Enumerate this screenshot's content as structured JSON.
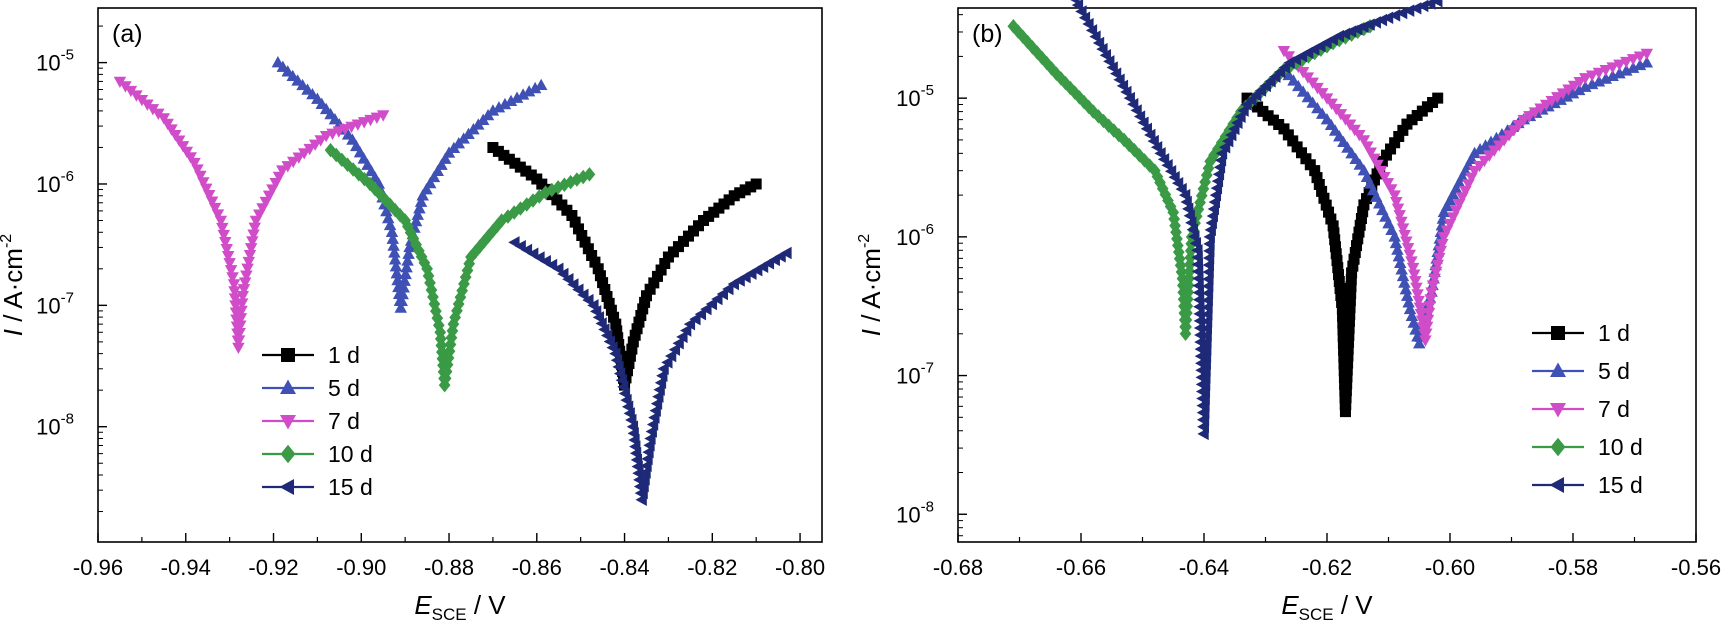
{
  "chart_data": [
    {
      "type": "line",
      "panel_label": "(a)",
      "xlabel": {
        "main": "E",
        "sub": "SCE",
        "rest": " / V"
      },
      "ylabel": {
        "italic": "I",
        "rest": " / A·cm",
        "sup": "-2"
      },
      "xlim": [
        -0.96,
        -0.795
      ],
      "ylim_log10": [
        -8.95,
        -4.55
      ],
      "x_ticks": [
        "-0.96",
        "-0.94",
        "-0.92",
        "-0.90",
        "-0.88",
        "-0.86",
        "-0.84",
        "-0.82",
        "-0.80"
      ],
      "y_ticks": [
        {
          "base": "10",
          "exp": "-8"
        },
        {
          "base": "10",
          "exp": "-7"
        },
        {
          "base": "10",
          "exp": "-6"
        },
        {
          "base": "10",
          "exp": "-5"
        }
      ],
      "legend_position": "lower-left",
      "series": [
        {
          "name": "1 d",
          "color": "#000000",
          "marker": "square",
          "points": [
            [
              -0.87,
              2e-06
            ],
            [
              -0.86,
              1.1e-06
            ],
            [
              -0.852,
              5.5e-07
            ],
            [
              -0.846,
              2e-07
            ],
            [
              -0.842,
              7e-08
            ],
            [
              -0.84,
              2.2e-08
            ],
            [
              -0.838,
              5e-08
            ],
            [
              -0.835,
              1.2e-07
            ],
            [
              -0.83,
              2.5e-07
            ],
            [
              -0.822,
              5e-07
            ],
            [
              -0.815,
              8e-07
            ],
            [
              -0.81,
              1e-06
            ]
          ]
        },
        {
          "name": "5 d",
          "color": "#3f51b5",
          "marker": "triangle-up",
          "points": [
            [
              -0.919,
              1e-05
            ],
            [
              -0.91,
              5e-06
            ],
            [
              -0.902,
              2.3e-06
            ],
            [
              -0.896,
              1e-06
            ],
            [
              -0.893,
              4e-07
            ],
            [
              -0.891,
              9.5e-08
            ],
            [
              -0.889,
              3e-07
            ],
            [
              -0.886,
              8e-07
            ],
            [
              -0.88,
              1.8e-06
            ],
            [
              -0.87,
              4e-06
            ],
            [
              -0.859,
              6.5e-06
            ]
          ]
        },
        {
          "name": "7 d",
          "color": "#d04cc8",
          "marker": "triangle-down",
          "points": [
            [
              -0.955,
              7e-06
            ],
            [
              -0.945,
              3.5e-06
            ],
            [
              -0.938,
              1.5e-06
            ],
            [
              -0.932,
              5e-07
            ],
            [
              -0.929,
              1.5e-07
            ],
            [
              -0.928,
              4.5e-08
            ],
            [
              -0.927,
              1.2e-07
            ],
            [
              -0.924,
              5e-07
            ],
            [
              -0.918,
              1.3e-06
            ],
            [
              -0.908,
              2.5e-06
            ],
            [
              -0.895,
              3.7e-06
            ]
          ]
        },
        {
          "name": "10 d",
          "color": "#3a9a45",
          "marker": "diamond",
          "points": [
            [
              -0.907,
              1.9e-06
            ],
            [
              -0.898,
              1e-06
            ],
            [
              -0.89,
              5e-07
            ],
            [
              -0.885,
              2e-07
            ],
            [
              -0.882,
              6e-08
            ],
            [
              -0.881,
              2.2e-08
            ],
            [
              -0.879,
              7e-08
            ],
            [
              -0.875,
              2.5e-07
            ],
            [
              -0.868,
              5e-07
            ],
            [
              -0.858,
              8.5e-07
            ],
            [
              -0.848,
              1.2e-06
            ]
          ]
        },
        {
          "name": "15 d",
          "color": "#1e2a78",
          "marker": "triangle-left",
          "points": [
            [
              -0.865,
              3.3e-07
            ],
            [
              -0.855,
              2e-07
            ],
            [
              -0.847,
              1e-07
            ],
            [
              -0.842,
              4e-08
            ],
            [
              -0.838,
              1e-08
            ],
            [
              -0.836,
              2.5e-09
            ],
            [
              -0.834,
              8e-09
            ],
            [
              -0.831,
              3e-08
            ],
            [
              -0.825,
              7e-08
            ],
            [
              -0.815,
              1.5e-07
            ],
            [
              -0.803,
              2.7e-07
            ]
          ]
        }
      ]
    },
    {
      "type": "line",
      "panel_label": "(b)",
      "xlabel": {
        "main": "E",
        "sub": "SCE",
        "rest": " / V"
      },
      "ylabel": {
        "italic": "I",
        "rest": " / A·cm",
        "sup": "-2"
      },
      "xlim": [
        -0.68,
        -0.56
      ],
      "ylim_log10": [
        -8.2,
        -4.35
      ],
      "x_ticks": [
        "-0.68",
        "-0.66",
        "-0.64",
        "-0.62",
        "-0.60",
        "-0.58",
        "-0.56"
      ],
      "y_ticks": [
        {
          "base": "10",
          "exp": "-8"
        },
        {
          "base": "10",
          "exp": "-7"
        },
        {
          "base": "10",
          "exp": "-6"
        },
        {
          "base": "10",
          "exp": "-5"
        }
      ],
      "legend_position": "lower-right",
      "series": [
        {
          "name": "1 d",
          "color": "#000000",
          "marker": "square",
          "points": [
            [
              -0.633,
              1e-05
            ],
            [
              -0.627,
              6e-06
            ],
            [
              -0.622,
              3e-06
            ],
            [
              -0.619,
              1.2e-06
            ],
            [
              -0.6175,
              3e-07
            ],
            [
              -0.617,
              5.5e-08
            ],
            [
              -0.616,
              5.5e-07
            ],
            [
              -0.614,
              1.7e-06
            ],
            [
              -0.611,
              3.5e-06
            ],
            [
              -0.607,
              6.5e-06
            ],
            [
              -0.602,
              1e-05
            ]
          ]
        },
        {
          "name": "5 d",
          "color": "#3f51b5",
          "marker": "triangle-up",
          "points": [
            [
              -0.627,
              1.6e-05
            ],
            [
              -0.62,
              7e-06
            ],
            [
              -0.614,
              3e-06
            ],
            [
              -0.609,
              1e-06
            ],
            [
              -0.6065,
              3e-07
            ],
            [
              -0.605,
              1.7e-07
            ],
            [
              -0.603,
              4e-07
            ],
            [
              -0.601,
              1.5e-06
            ],
            [
              -0.596,
              4e-06
            ],
            [
              -0.588,
              7e-06
            ],
            [
              -0.578,
              1.2e-05
            ],
            [
              -0.568,
              1.8e-05
            ]
          ]
        },
        {
          "name": "7 d",
          "color": "#d04cc8",
          "marker": "triangle-down",
          "points": [
            [
              -0.627,
              2.2e-05
            ],
            [
              -0.62,
              1e-05
            ],
            [
              -0.614,
              5e-06
            ],
            [
              -0.609,
              2e-06
            ],
            [
              -0.606,
              6e-07
            ],
            [
              -0.604,
              1.8e-07
            ],
            [
              -0.603,
              4e-07
            ],
            [
              -0.601,
              1e-06
            ],
            [
              -0.596,
              3e-06
            ],
            [
              -0.588,
              7e-06
            ],
            [
              -0.578,
              1.4e-05
            ],
            [
              -0.568,
              2.1e-05
            ]
          ]
        },
        {
          "name": "10 d",
          "color": "#3a9a45",
          "marker": "diamond",
          "points": [
            [
              -0.671,
              3.3e-05
            ],
            [
              -0.664,
              1.5e-05
            ],
            [
              -0.658,
              8e-06
            ],
            [
              -0.653,
              5e-06
            ],
            [
              -0.648,
              3e-06
            ],
            [
              -0.645,
              1.5e-06
            ],
            [
              -0.6435,
              5e-07
            ],
            [
              -0.643,
              2e-07
            ],
            [
              -0.642,
              1e-06
            ],
            [
              -0.639,
              3.5e-06
            ],
            [
              -0.634,
              8e-06
            ],
            [
              -0.627,
              1.6e-05
            ],
            [
              -0.619,
              2.5e-05
            ],
            [
              -0.613,
              3.3e-05
            ]
          ]
        },
        {
          "name": "15 d",
          "color": "#1e2a78",
          "marker": "triangle-left",
          "points": [
            [
              -0.661,
              5.2e-05
            ],
            [
              -0.657,
              2.5e-05
            ],
            [
              -0.652,
              1e-05
            ],
            [
              -0.647,
              4e-06
            ],
            [
              -0.643,
              2e-06
            ],
            [
              -0.641,
              8e-07
            ],
            [
              -0.64,
              3.8e-08
            ],
            [
              -0.639,
              1e-06
            ],
            [
              -0.637,
              4e-06
            ],
            [
              -0.633,
              9e-06
            ],
            [
              -0.626,
              1.8e-05
            ],
            [
              -0.618,
              2.8e-05
            ],
            [
              -0.61,
              3.8e-05
            ],
            [
              -0.602,
              5e-05
            ]
          ]
        }
      ]
    }
  ]
}
